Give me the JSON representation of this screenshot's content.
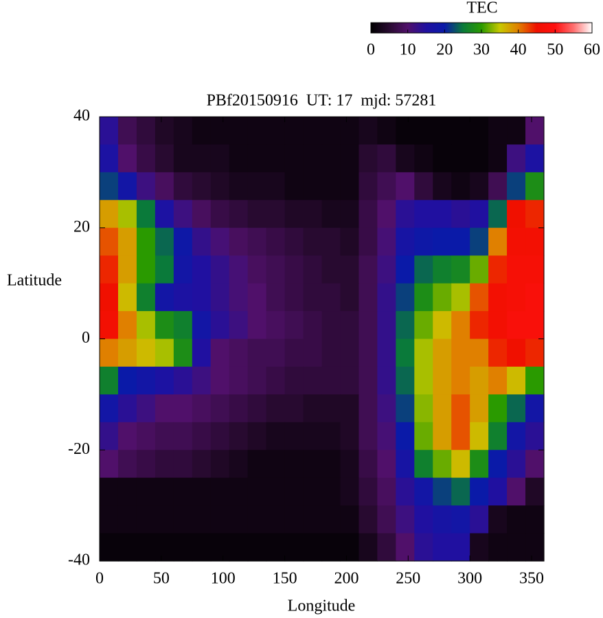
{
  "chart_data": {
    "type": "heatmap",
    "title": "PBf20150916  UT: 17  mjd: 57281",
    "xlabel": "Longitude",
    "ylabel": "Latitude",
    "colorbar_label": "TEC",
    "xlim": [
      0,
      360
    ],
    "ylim": [
      -40,
      40
    ],
    "zlim": [
      0,
      60
    ],
    "xticks": [
      0,
      50,
      100,
      150,
      200,
      250,
      300,
      350
    ],
    "yticks": [
      -40,
      -20,
      0,
      20,
      40
    ],
    "zticks": [
      0,
      10,
      20,
      30,
      40,
      50,
      60
    ],
    "colormap": [
      "#000000",
      "#280a30",
      "#50106a",
      "#2010a0",
      "#0a1aa8",
      "#0a7a3a",
      "#2a9a00",
      "#c8c800",
      "#e08000",
      "#f01000",
      "#ff1010",
      "#ff7070",
      "#ffffff"
    ],
    "x": [
      0,
      15,
      30,
      45,
      60,
      75,
      90,
      105,
      120,
      135,
      150,
      165,
      180,
      195,
      210,
      225,
      240,
      255,
      270,
      285,
      300,
      315,
      330,
      345
    ],
    "y": [
      35,
      30,
      25,
      20,
      15,
      10,
      5,
      0,
      -5,
      -10,
      -15,
      -20,
      -25,
      -30,
      -35,
      -40
    ],
    "z": [
      [
        14,
        8,
        6,
        4,
        3,
        2,
        2,
        2,
        2,
        2,
        2,
        2,
        2,
        2,
        3,
        2,
        1,
        1,
        1,
        1,
        1,
        2,
        2,
        10
      ],
      [
        16,
        10,
        7,
        5,
        3,
        3,
        3,
        2,
        2,
        2,
        2,
        2,
        2,
        2,
        5,
        6,
        3,
        2,
        1,
        1,
        1,
        2,
        12,
        16
      ],
      [
        22,
        18,
        12,
        9,
        6,
        5,
        4,
        3,
        3,
        3,
        2,
        2,
        2,
        2,
        6,
        8,
        10,
        6,
        3,
        2,
        3,
        8,
        22,
        28
      ],
      [
        38,
        34,
        25,
        16,
        12,
        9,
        7,
        6,
        5,
        5,
        4,
        4,
        3,
        3,
        7,
        10,
        14,
        15,
        15,
        14,
        15,
        24,
        45,
        44
      ],
      [
        42,
        38,
        30,
        24,
        19,
        13,
        11,
        9,
        8,
        7,
        6,
        5,
        5,
        4,
        7,
        11,
        17,
        19,
        20,
        20,
        22,
        40,
        46,
        46
      ],
      [
        44,
        38,
        30,
        25,
        18,
        15,
        13,
        11,
        9,
        8,
        7,
        6,
        5,
        5,
        8,
        12,
        20,
        24,
        26,
        27,
        32,
        44,
        47,
        47
      ],
      [
        45,
        36,
        26,
        18,
        16,
        15,
        13,
        11,
        10,
        8,
        7,
        6,
        6,
        5,
        8,
        13,
        22,
        28,
        32,
        34,
        42,
        46,
        47,
        48
      ],
      [
        46,
        40,
        34,
        28,
        26,
        18,
        14,
        12,
        10,
        9,
        8,
        7,
        6,
        6,
        8,
        13,
        24,
        32,
        36,
        40,
        44,
        46,
        48,
        48
      ],
      [
        40,
        38,
        36,
        34,
        28,
        15,
        10,
        9,
        8,
        8,
        7,
        7,
        6,
        6,
        8,
        13,
        25,
        34,
        38,
        40,
        40,
        44,
        45,
        44
      ],
      [
        26,
        20,
        18,
        16,
        14,
        12,
        10,
        9,
        8,
        7,
        6,
        6,
        6,
        6,
        8,
        13,
        24,
        34,
        38,
        40,
        38,
        40,
        36,
        30
      ],
      [
        18,
        14,
        12,
        10,
        10,
        9,
        8,
        7,
        6,
        5,
        5,
        4,
        4,
        4,
        8,
        12,
        22,
        33,
        38,
        42,
        38,
        30,
        24,
        18
      ],
      [
        13,
        10,
        9,
        8,
        8,
        7,
        6,
        5,
        4,
        3,
        3,
        3,
        3,
        4,
        8,
        11,
        20,
        32,
        38,
        42,
        36,
        26,
        18,
        14
      ],
      [
        10,
        8,
        7,
        6,
        6,
        5,
        4,
        3,
        2,
        2,
        2,
        2,
        2,
        3,
        7,
        10,
        17,
        26,
        32,
        36,
        28,
        20,
        14,
        10
      ],
      [
        2,
        2,
        2,
        2,
        2,
        2,
        2,
        2,
        2,
        2,
        2,
        2,
        2,
        3,
        6,
        9,
        14,
        18,
        22,
        24,
        20,
        15,
        10,
        4
      ],
      [
        2,
        2,
        2,
        2,
        2,
        2,
        2,
        2,
        2,
        2,
        2,
        2,
        2,
        2,
        5,
        8,
        12,
        15,
        17,
        18,
        14,
        3,
        2,
        2
      ],
      [
        1,
        1,
        1,
        1,
        1,
        1,
        1,
        1,
        1,
        1,
        1,
        1,
        1,
        1,
        3,
        6,
        10,
        14,
        15,
        15,
        3,
        2,
        2,
        2
      ]
    ]
  }
}
